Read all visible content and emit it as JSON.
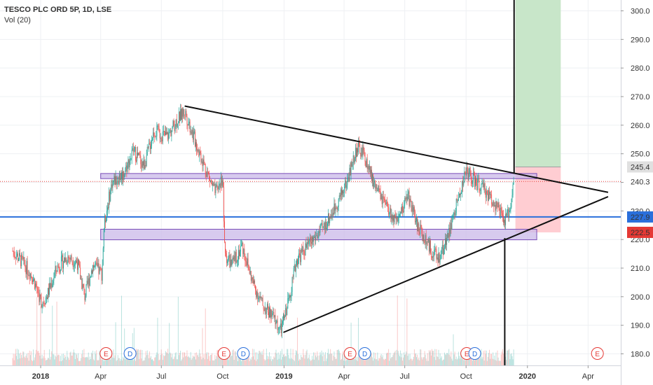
{
  "legend": {
    "symbol": "TESCO PLC ORD 5P, 1D, LSE",
    "volume": "Vol (20)"
  },
  "colors": {
    "up": "#26a69a",
    "down": "#ef5350",
    "trendline": "#111111",
    "zone": "#c9b8e8",
    "zone_border": "#7b4fb8",
    "support": "#2a6fdb",
    "resistance_dotted": "#e53935",
    "target_profit": "#c8e6c9",
    "target_loss": "#ffcdd2"
  },
  "chart_data": {
    "type": "candlestick",
    "title": "TESCO PLC ORD 5P, 1D, LSE",
    "y_ticks": [
      180.0,
      190.0,
      200.0,
      210.0,
      220.0,
      230.0,
      240.0,
      250.0,
      260.0,
      270.0,
      280.0,
      290.0,
      300.0
    ],
    "x_ticks": [
      "2018",
      "Apr",
      "Jul",
      "Oct",
      "2019",
      "Apr",
      "Jul",
      "Oct",
      "2020",
      "Apr"
    ],
    "ylim": [
      177.5,
      303.5
    ],
    "price_labels": [
      {
        "value": 245.4,
        "label": "245.4",
        "bg": "#e0e0e0",
        "fg": "#333333"
      },
      {
        "value": 240.3,
        "label": "240.3",
        "bg": "#ffffff",
        "fg": "#e53935"
      },
      {
        "value": 227.9,
        "label": "227.9",
        "bg": "#2a6fdb",
        "fg": "#ffffff"
      },
      {
        "value": 222.5,
        "label": "222.5",
        "bg": "#e53935",
        "fg": "#ffffff"
      }
    ],
    "price_path": [
      [
        "2017-11-20",
        216
      ],
      [
        "2017-12-05",
        212
      ],
      [
        "2017-12-20",
        207
      ],
      [
        "2018-01-02",
        198
      ],
      [
        "2018-01-10",
        200
      ],
      [
        "2018-01-25",
        210
      ],
      [
        "2018-02-10",
        214
      ],
      [
        "2018-02-25",
        212
      ],
      [
        "2018-03-08",
        200
      ],
      [
        "2018-03-20",
        211
      ],
      [
        "2018-04-03",
        208
      ],
      [
        "2018-04-06",
        225
      ],
      [
        "2018-04-18",
        240
      ],
      [
        "2018-05-05",
        243
      ],
      [
        "2018-05-20",
        251
      ],
      [
        "2018-06-05",
        246
      ],
      [
        "2018-06-20",
        258
      ],
      [
        "2018-07-10",
        256
      ],
      [
        "2018-07-25",
        262
      ],
      [
        "2018-08-05",
        265
      ],
      [
        "2018-08-20",
        255
      ],
      [
        "2018-09-05",
        245
      ],
      [
        "2018-09-20",
        236
      ],
      [
        "2018-10-01",
        242
      ],
      [
        "2018-10-04",
        215
      ],
      [
        "2018-10-15",
        211
      ],
      [
        "2018-10-30",
        218
      ],
      [
        "2018-11-15",
        205
      ],
      [
        "2018-11-30",
        197
      ],
      [
        "2018-12-15",
        193
      ],
      [
        "2018-12-27",
        188
      ],
      [
        "2019-01-05",
        196
      ],
      [
        "2019-01-20",
        213
      ],
      [
        "2019-02-10",
        219
      ],
      [
        "2019-03-01",
        224
      ],
      [
        "2019-03-20",
        232
      ],
      [
        "2019-04-05",
        240
      ],
      [
        "2019-04-20",
        252
      ],
      [
        "2019-04-30",
        250
      ],
      [
        "2019-05-15",
        240
      ],
      [
        "2019-06-01",
        232
      ],
      [
        "2019-06-20",
        225
      ],
      [
        "2019-07-05",
        236
      ],
      [
        "2019-07-20",
        225
      ],
      [
        "2019-08-05",
        218
      ],
      [
        "2019-08-20",
        213
      ],
      [
        "2019-09-05",
        222
      ],
      [
        "2019-09-20",
        235
      ],
      [
        "2019-10-01",
        244
      ],
      [
        "2019-10-15",
        240
      ],
      [
        "2019-10-30",
        237
      ],
      [
        "2019-11-15",
        232
      ],
      [
        "2019-11-28",
        226
      ],
      [
        "2019-12-05",
        230
      ],
      [
        "2019-12-12",
        242
      ]
    ],
    "zones": [
      {
        "y_low": 241.3,
        "y_high": 243.1,
        "from": "2018-04-01",
        "to": "2020-01-15"
      },
      {
        "y_low": 219.9,
        "y_high": 223.6,
        "from": "2018-04-01",
        "to": "2020-01-15"
      }
    ],
    "support_line": 227.9,
    "resistance_dotted": 240.3,
    "trendlines": [
      {
        "from": [
          "2018-08-05",
          266.7
        ],
        "to": [
          "2020-05-01",
          236.5
        ]
      },
      {
        "from": [
          "2018-12-31",
          187.5
        ],
        "to": [
          "2020-05-01",
          235.0
        ]
      }
    ],
    "verticals": [
      {
        "date": "2019-12-12",
        "from": 243.0,
        "to": 304.0
      },
      {
        "date": "2019-11-28",
        "from": 220.5,
        "to": 176.0
      }
    ],
    "target_box": {
      "from": "2019-12-14",
      "to": "2020-02-20",
      "profit": [
        245.4,
        304.0
      ],
      "loss": [
        222.5,
        245.4
      ]
    },
    "earnings_events": [
      {
        "date": "2018-04-09",
        "label": "E",
        "kind": "earnings"
      },
      {
        "date": "2018-05-15",
        "label": "D",
        "kind": "dividend"
      },
      {
        "date": "2018-10-03",
        "label": "E",
        "kind": "earnings"
      },
      {
        "date": "2018-11-01",
        "label": "D",
        "kind": "dividend"
      },
      {
        "date": "2019-04-10",
        "label": "E",
        "kind": "earnings"
      },
      {
        "date": "2019-05-02",
        "label": "D",
        "kind": "dividend"
      },
      {
        "date": "2019-10-02",
        "label": "E",
        "kind": "earnings"
      },
      {
        "date": "2019-10-14",
        "label": "D",
        "kind": "dividend"
      },
      {
        "date": "2020-04-15",
        "label": "E",
        "kind": "earnings"
      }
    ]
  }
}
